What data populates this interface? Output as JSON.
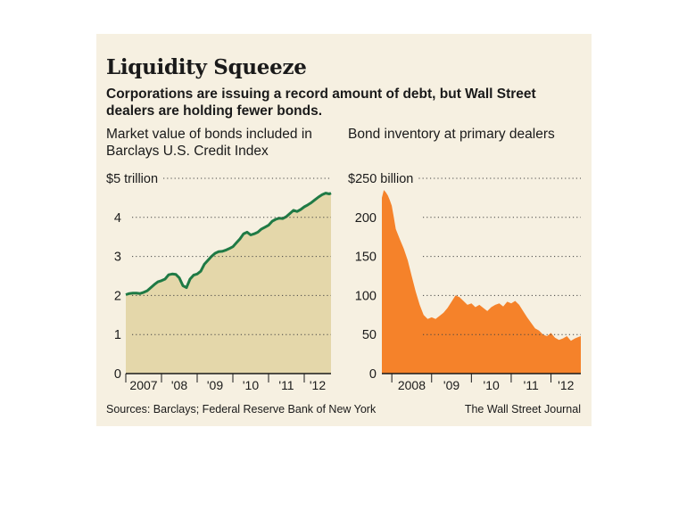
{
  "headline": "Liquidity Squeeze",
  "subhead": "Corporations are issuing a record amount of debt, but Wall Street dealers are holding fewer bonds.",
  "source": "Sources: Barclays; Federal Reserve Bank of New York",
  "credit": "The Wall Street Journal",
  "colors": {
    "background": "#f6f0e1",
    "left_fill": "#e4d7aa",
    "left_line": "#1f7a45",
    "right_fill": "#f5822a"
  },
  "chart_data": [
    {
      "type": "area",
      "title": "Market value of bonds included in Barclays U.S. Credit Index",
      "unit_label": "$5 trillion",
      "ylim": [
        0,
        5
      ],
      "yticks": [
        "0",
        "1",
        "2",
        "3",
        "4"
      ],
      "top_tick_value": 5,
      "xlim": [
        2007.0,
        2012.75
      ],
      "xtick_labels": [
        "2007",
        "'08",
        "'09",
        "'10",
        "'11",
        "'12"
      ],
      "grid": "dotted horizontal",
      "x": [
        2007.0,
        2007.1,
        2007.2,
        2007.3,
        2007.4,
        2007.5,
        2007.6,
        2007.7,
        2007.8,
        2007.9,
        2008.0,
        2008.1,
        2008.2,
        2008.3,
        2008.4,
        2008.5,
        2008.6,
        2008.7,
        2008.8,
        2008.9,
        2009.0,
        2009.1,
        2009.2,
        2009.3,
        2009.4,
        2009.5,
        2009.6,
        2009.7,
        2009.8,
        2009.9,
        2010.0,
        2010.1,
        2010.2,
        2010.3,
        2010.4,
        2010.5,
        2010.6,
        2010.7,
        2010.8,
        2010.9,
        2011.0,
        2011.1,
        2011.2,
        2011.3,
        2011.4,
        2011.5,
        2011.6,
        2011.7,
        2011.8,
        2011.9,
        2012.0,
        2012.1,
        2012.2,
        2012.3,
        2012.4,
        2012.5,
        2012.6,
        2012.7,
        2012.75
      ],
      "y": [
        2.02,
        2.05,
        2.06,
        2.06,
        2.05,
        2.08,
        2.12,
        2.2,
        2.28,
        2.35,
        2.38,
        2.42,
        2.53,
        2.55,
        2.54,
        2.45,
        2.25,
        2.2,
        2.42,
        2.52,
        2.55,
        2.62,
        2.8,
        2.9,
        3.0,
        3.08,
        3.12,
        3.13,
        3.16,
        3.2,
        3.25,
        3.35,
        3.45,
        3.58,
        3.62,
        3.55,
        3.58,
        3.62,
        3.7,
        3.75,
        3.8,
        3.9,
        3.95,
        3.98,
        3.97,
        4.02,
        4.1,
        4.18,
        4.15,
        4.2,
        4.27,
        4.32,
        4.38,
        4.45,
        4.52,
        4.58,
        4.62,
        4.6,
        4.62
      ]
    },
    {
      "type": "area",
      "title": "Bond inventory at primary dealers",
      "unit_label": "$250 billion",
      "ylim": [
        0,
        250
      ],
      "yticks": [
        "0",
        "50",
        "100",
        "150",
        "200"
      ],
      "top_tick_value": 250,
      "xlim": [
        2007.75,
        2012.75
      ],
      "xtick_labels": [
        "2008",
        "'09",
        "'10",
        "'11",
        "'12"
      ],
      "grid": "dotted horizontal",
      "x": [
        2007.75,
        2007.8,
        2007.85,
        2007.9,
        2007.95,
        2008.0,
        2008.05,
        2008.1,
        2008.2,
        2008.3,
        2008.4,
        2008.5,
        2008.6,
        2008.7,
        2008.8,
        2008.9,
        2009.0,
        2009.1,
        2009.2,
        2009.3,
        2009.4,
        2009.5,
        2009.6,
        2009.7,
        2009.8,
        2009.9,
        2010.0,
        2010.1,
        2010.2,
        2010.3,
        2010.4,
        2010.5,
        2010.6,
        2010.7,
        2010.8,
        2010.9,
        2011.0,
        2011.1,
        2011.2,
        2011.3,
        2011.4,
        2011.5,
        2011.6,
        2011.7,
        2011.8,
        2011.9,
        2012.0,
        2012.1,
        2012.2,
        2012.3,
        2012.4,
        2012.5,
        2012.6,
        2012.7,
        2012.75
      ],
      "y": [
        225,
        235,
        232,
        228,
        222,
        215,
        200,
        185,
        172,
        160,
        145,
        125,
        105,
        88,
        75,
        70,
        72,
        70,
        74,
        78,
        84,
        92,
        100,
        98,
        93,
        88,
        90,
        85,
        88,
        84,
        80,
        85,
        88,
        90,
        86,
        92,
        90,
        93,
        88,
        80,
        72,
        65,
        58,
        55,
        50,
        48,
        52,
        46,
        43,
        45,
        48,
        42,
        45,
        47,
        48
      ]
    }
  ]
}
